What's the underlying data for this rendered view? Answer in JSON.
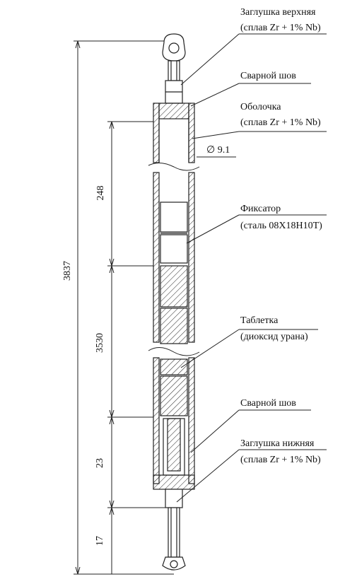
{
  "labels": {
    "top_cap": "Заглушка верхняя",
    "top_cap_material": "(сплав Zr + 1% Nb)",
    "weld_top": "Сварной шов",
    "cladding": "Оболочка",
    "cladding_material": "(сплав Zr + 1% Nb)",
    "diameter": "∅ 9.1",
    "retainer": "Фиксатор",
    "retainer_material": "(сталь 08Х18Н10Т)",
    "pellet": "Таблетка",
    "pellet_material": "(диоксид урана)",
    "weld_bottom": "Сварной шов",
    "bottom_cap": "Заглушка нижняя",
    "bottom_cap_material": "(сплав Zr + 1% Nb)"
  },
  "dimensions": {
    "total_length": "3837",
    "plenum_length": "248",
    "fuel_column_length": "3530",
    "bottom_section": "23",
    "bottom_cap_length": "17"
  }
}
